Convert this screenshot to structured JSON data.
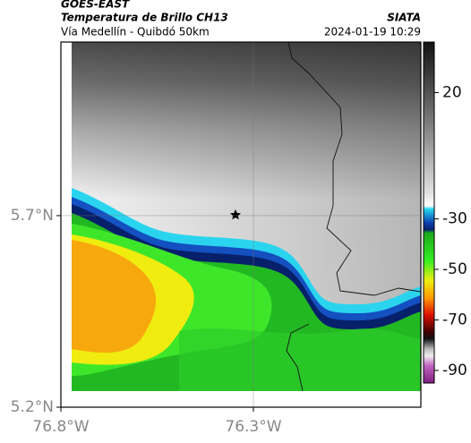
{
  "header": {
    "title": "GOES-EAST",
    "subtitle": "Temperatura de Brillo CH13",
    "source": "SIATA",
    "route": "Vía Medellín - Quibdó 50km",
    "datetime": "2024-01-19 10:29"
  },
  "map": {
    "xlim": [
      -76.8,
      -75.865
    ],
    "ylim": [
      5.2,
      6.153
    ],
    "xticks": [
      {
        "value": -76.8,
        "label": "76.8°W"
      },
      {
        "value": -76.3,
        "label": "76.3°W"
      }
    ],
    "yticks": [
      {
        "value": 5.7,
        "label": "5.7°N"
      },
      {
        "value": 5.2,
        "label": "5.2°N"
      }
    ]
  },
  "colorbar": {
    "lim": [
      -95,
      40
    ],
    "ticks": [
      20,
      -30,
      -50,
      -70,
      -90
    ]
  }
}
